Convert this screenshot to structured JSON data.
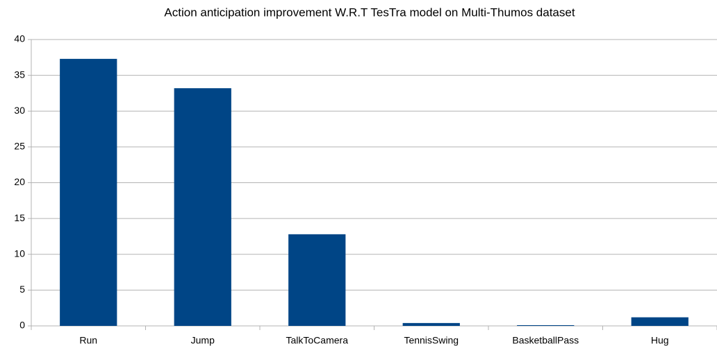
{
  "chart_data": {
    "type": "bar",
    "title": "Action anticipation improvement W.R.T TesTra model on Multi-Thumos dataset",
    "categories": [
      "Run",
      "Jump",
      "TalkToCamera",
      "TennisSwing",
      "BasketballPass",
      "Hug"
    ],
    "values": [
      37.3,
      33.2,
      12.8,
      0.4,
      0.1,
      1.2
    ],
    "color": "#004586",
    "ylim": [
      0,
      40
    ],
    "yticks": [
      0,
      5,
      10,
      15,
      20,
      25,
      30,
      35,
      40
    ],
    "grid": true
  }
}
